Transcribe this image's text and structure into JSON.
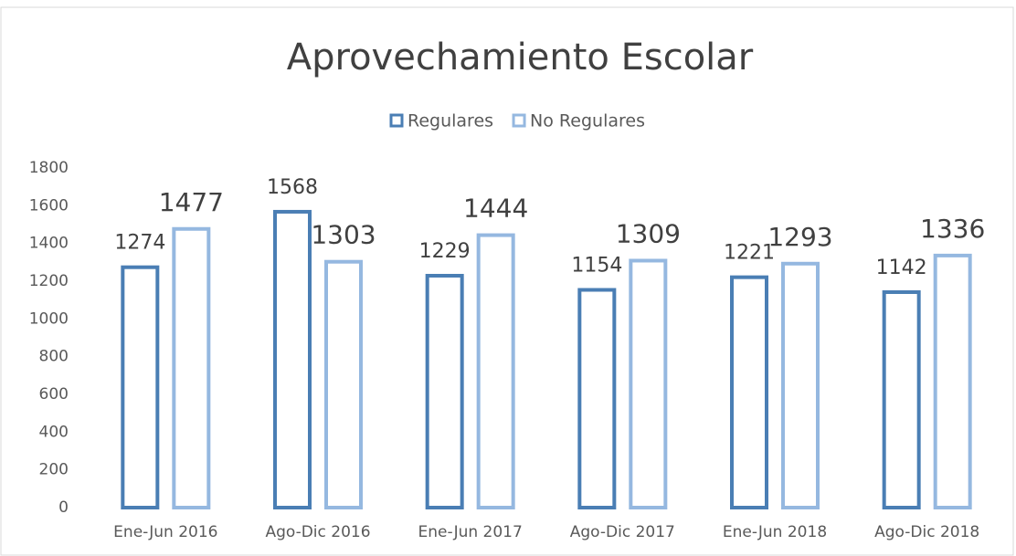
{
  "chart_data": {
    "type": "bar",
    "title": "Aprovechamiento Escolar",
    "categories": [
      "Ene-Jun 2016",
      "Ago-Dic 2016",
      "Ene-Jun 2017",
      "Ago-Dic 2017",
      "Ene-Jun 2018",
      "Ago-Dic 2018"
    ],
    "series": [
      {
        "name": "Regulares",
        "color": "#4a7eb4",
        "values": [
          1274,
          1568,
          1229,
          1154,
          1221,
          1142
        ]
      },
      {
        "name": "No Regulares",
        "color": "#95b8e0",
        "values": [
          1477,
          1303,
          1444,
          1309,
          1293,
          1336
        ]
      }
    ],
    "ylim": [
      0,
      1800
    ],
    "yticks": [
      0,
      200,
      400,
      600,
      800,
      1000,
      1200,
      1400,
      1600,
      1800
    ],
    "grid": false,
    "legend": "top"
  }
}
